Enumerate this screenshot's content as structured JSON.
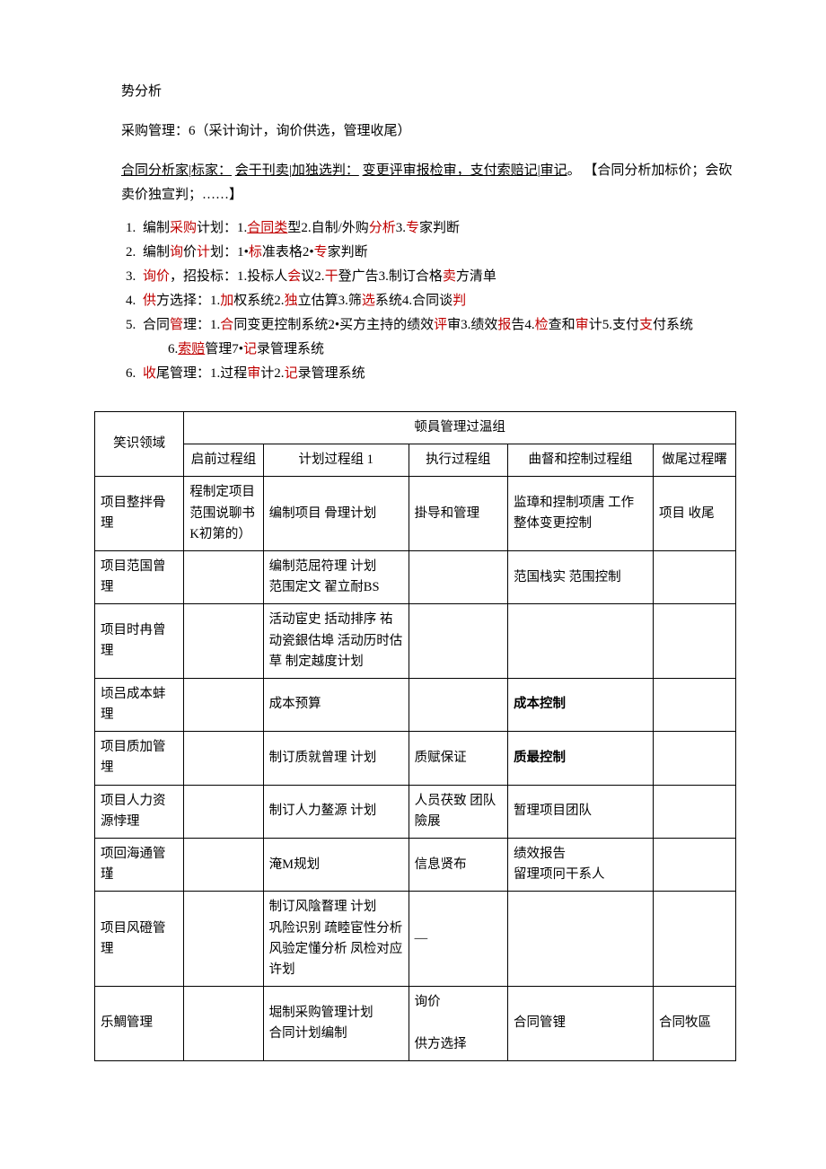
{
  "top_line": "势分析",
  "line2": "采购管理：6（采计询计，询价供选，管理收尾）",
  "mnemonic": {
    "p1a": "合同分析家",
    "p1b": "标家：",
    "p1c": "会干刊卖",
    "p1d": "加独选判：",
    "p1e": "变更评审报检审，支付索赔记",
    "p1f": "审记",
    "p2": "。 【合同分析加标价；会砍卖价独宣判；……】"
  },
  "list": [
    {
      "lead": "编制",
      "r1": "采购",
      "mid": "计划：1.",
      "u1": "合同类",
      "mid2": "型2.自制/外购",
      "r2": "分析",
      "mid3": "3.",
      "r3": "专",
      "tail": "家判断"
    },
    {
      "lead": "编制",
      "r1": "询",
      "mid": "价",
      "r2": "计",
      "mid2": "划：1•",
      "r3": "标",
      "mid3": "准表格2•",
      "r4": "专",
      "tail": "家判断"
    },
    {
      "r1": "询价",
      "mid": "，招投标：1.投标人",
      "r2": "会",
      "mid2": "议2.",
      "r3": "干",
      "mid3": "登广告3.制订合格",
      "r4": "卖",
      "tail": "方清单"
    },
    {
      "r1": "供",
      "mid": "方选择：1.",
      "r2": "加",
      "mid2": "权系统2.",
      "r3": "独",
      "mid3": "立估算3.筛",
      "r4": "选",
      "mid4": "系统4.合同谈",
      "r5": "判"
    },
    {
      "lead": "合同",
      "r1": "管",
      "mid": "理：1.",
      "r2": "合",
      "mid2": "同变更控制系统2•买方主持的绩效",
      "r3": "评",
      "mid3": "审3.绩效",
      "r4": "报",
      "mid4": "告4.",
      "r5": "检",
      "mid5": "查和",
      "r6": "审",
      "mid6": "计5.支付",
      "r7": "支",
      "mid7": "付系统",
      "sub_a": "6.",
      "sub_u": "索赔",
      "sub_b": "管理7•",
      "sub_r": "记",
      "sub_c": "录管理系统"
    },
    {
      "r1": "收",
      "mid": "尾管理：1.过程",
      "r2": "审",
      "mid2": "计2.",
      "r3": "记",
      "tail": "录管理系统"
    }
  ],
  "table": {
    "header_top": "顿員管理过温组",
    "col0": "笑识领域",
    "cols": [
      "启前过程组",
      "计划过程组 1",
      "执行过程组",
      "曲督和控制过程组",
      "做尾过程曙"
    ],
    "rows": [
      {
        "c0": "项目整拌骨理",
        "c1": "程制定项目范围说聊书K初第的）",
        "c2": "编制项目 骨理计划",
        "c3": "掛导和管理",
        "c4": "监璋和捏制项唐 工作 整体变更控制",
        "c5": "项目 收尾"
      },
      {
        "c0": "项目范国曾理",
        "c1": "",
        "c2": "编制范屈符理 计划\n范围定文 翟立耐BS",
        "c3": "",
        "c4": "范国栈实 范围控制",
        "c5": ""
      },
      {
        "c0": "项目时冉曾理",
        "c1": "",
        "c2": "活动宦史 括动排序 祐动瓷銀估埠 活动历时估草 制定越度计划",
        "c3": "",
        "c4": "",
        "c5": ""
      },
      {
        "c0": "顷吕成本蚌理",
        "c1": "",
        "c2": "成本预算",
        "c3": "",
        "c4": "成本控制",
        "c5": ""
      },
      {
        "c0": "项目质加管埋",
        "c1": "",
        "c2": "制订质就曾理 计划",
        "c3": "质赋保证",
        "c4": "质最控制",
        "c5": ""
      },
      {
        "c0": "项目人力资源悖理",
        "c1": "",
        "c2": "制订人力鳌源 计划",
        "c3": "人员茯致 团队險展",
        "c4": "暂理项目团队",
        "c5": ""
      },
      {
        "c0": "项回海通管瑾",
        "c1": "",
        "c2": "淹M规划",
        "c3": "信息贤布",
        "c4": "绩效报告\n留理项冋干系人",
        "c5": ""
      },
      {
        "c0": "项目风磴管理",
        "c1": "",
        "c2": "制订风陰瞀理 计划\n巩险识别 疏睦宦性分析 风验定懂分析 凤检对应许划",
        "c3": "—",
        "c4": "",
        "c5": ""
      },
      {
        "c0": "乐鯛管理",
        "c1": "",
        "c2": "堀制采购管理计划\n合同计划编制",
        "c3": "询价\n\n供方选择",
        "c4": "合同管锂",
        "c5": "合同牧區"
      }
    ]
  }
}
